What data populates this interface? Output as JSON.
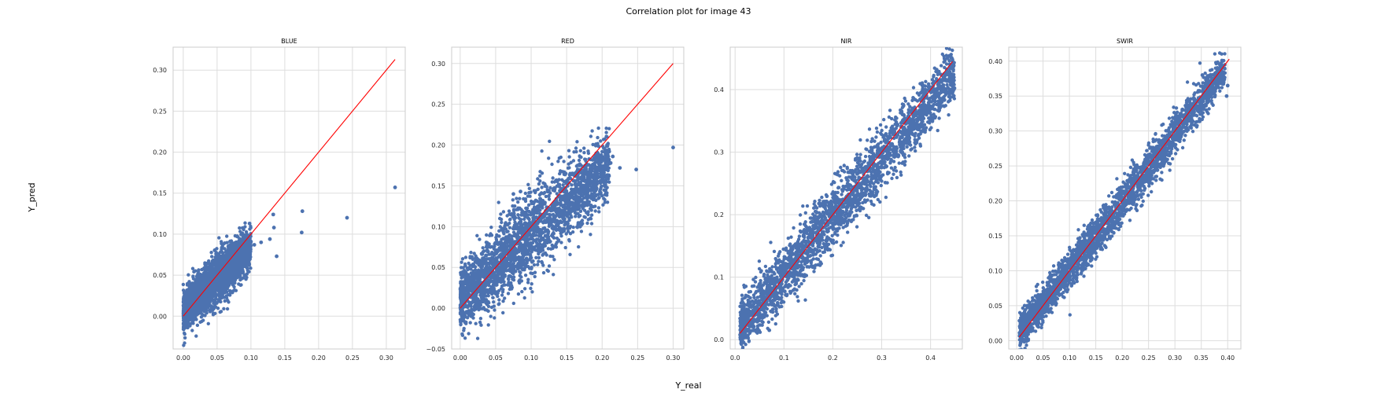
{
  "figure": {
    "title": "Correlation plot for image 43",
    "xlabel": "Y_real",
    "ylabel": "Y_pred"
  },
  "colors": {
    "points": "#4c72b0",
    "identity_line": "#ff0000",
    "grid": "#dddddd",
    "frame": "#cccccc",
    "background": "#ffffff"
  },
  "chart_data": [
    {
      "type": "scatter",
      "title": "BLUE",
      "xlim": [
        -0.015,
        0.328
      ],
      "ylim": [
        -0.04,
        0.328
      ],
      "xticks": [
        0.0,
        0.05,
        0.1,
        0.15,
        0.2,
        0.25,
        0.3
      ],
      "xtick_labels": [
        "0.00",
        "0.05",
        "0.10",
        "0.15",
        "0.20",
        "0.25",
        "0.30"
      ],
      "yticks": [
        0.0,
        0.05,
        0.1,
        0.15,
        0.2,
        0.25,
        0.3
      ],
      "ytick_labels": [
        "0.00",
        "0.05",
        "0.10",
        "0.15",
        "0.20",
        "0.25",
        "0.30"
      ],
      "grid": true,
      "identity_line": [
        [
          0.0,
          0.0
        ],
        [
          0.313,
          0.313
        ]
      ],
      "cloud": {
        "x_range": [
          0.0,
          0.1
        ],
        "slope": 0.78,
        "intercept": 0.006,
        "spread": 0.012
      },
      "outliers": [
        [
          0.313,
          0.157
        ],
        [
          0.242,
          0.12
        ],
        [
          0.176,
          0.128
        ],
        [
          0.175,
          0.102
        ],
        [
          0.138,
          0.073
        ],
        [
          0.133,
          0.124
        ],
        [
          0.134,
          0.108
        ],
        [
          0.128,
          0.094
        ],
        [
          0.115,
          0.09
        ],
        [
          0.098,
          0.113
        ],
        [
          0.095,
          0.093
        ],
        [
          0.105,
          0.087
        ],
        [
          0.1,
          0.091
        ]
      ]
    },
    {
      "type": "scatter",
      "title": "RED",
      "xlim": [
        -0.012,
        0.315
      ],
      "ylim": [
        -0.05,
        0.32
      ],
      "xticks": [
        0.0,
        0.05,
        0.1,
        0.15,
        0.2,
        0.25,
        0.3
      ],
      "xtick_labels": [
        "0.00",
        "0.05",
        "0.10",
        "0.15",
        "0.20",
        "0.25",
        "0.30"
      ],
      "yticks": [
        -0.05,
        0.0,
        0.05,
        0.1,
        0.15,
        0.2,
        0.25,
        0.3
      ],
      "ytick_labels": [
        "−0.05",
        "0.00",
        "0.05",
        "0.10",
        "0.15",
        "0.20",
        "0.25",
        "0.30"
      ],
      "grid": true,
      "identity_line": [
        [
          0.0,
          0.0
        ],
        [
          0.3,
          0.3
        ]
      ],
      "cloud": {
        "x_range": [
          0.0,
          0.21
        ],
        "slope": 0.8,
        "intercept": 0.01,
        "spread": 0.02
      },
      "outliers": [
        [
          0.3,
          0.197
        ],
        [
          0.248,
          0.17
        ],
        [
          0.225,
          0.172
        ],
        [
          0.215,
          0.186
        ],
        [
          0.212,
          0.178
        ],
        [
          0.21,
          0.192
        ],
        [
          0.205,
          0.18
        ],
        [
          0.075,
          0.14
        ],
        [
          0.085,
          0.143
        ]
      ]
    },
    {
      "type": "scatter",
      "title": "NIR",
      "xlim": [
        -0.01,
        0.465
      ],
      "ylim": [
        -0.015,
        0.468
      ],
      "xticks": [
        0.0,
        0.1,
        0.2,
        0.3,
        0.4
      ],
      "xtick_labels": [
        "0.0",
        "0.1",
        "0.2",
        "0.3",
        "0.4"
      ],
      "yticks": [
        0.0,
        0.1,
        0.2,
        0.3,
        0.4
      ],
      "ytick_labels": [
        "0.0",
        "0.1",
        "0.2",
        "0.3",
        "0.4"
      ],
      "grid": true,
      "identity_line": [
        [
          0.01,
          0.01
        ],
        [
          0.445,
          0.445
        ]
      ],
      "cloud": {
        "x_range": [
          0.01,
          0.45
        ],
        "slope": 0.93,
        "intercept": 0.01,
        "spread": 0.02
      },
      "outliers": [
        [
          0.445,
          0.408
        ],
        [
          0.44,
          0.412
        ],
        [
          0.38,
          0.395
        ],
        [
          0.07,
          0.015
        ]
      ]
    },
    {
      "type": "scatter",
      "title": "SWIR",
      "xlim": [
        -0.015,
        0.425
      ],
      "ylim": [
        -0.012,
        0.42
      ],
      "xticks": [
        0.0,
        0.05,
        0.1,
        0.15,
        0.2,
        0.25,
        0.3,
        0.35,
        0.4
      ],
      "xtick_labels": [
        "0.00",
        "0.05",
        "0.10",
        "0.15",
        "0.20",
        "0.25",
        "0.30",
        "0.35",
        "0.40"
      ],
      "yticks": [
        0.0,
        0.05,
        0.1,
        0.15,
        0.2,
        0.25,
        0.3,
        0.35,
        0.4
      ],
      "ytick_labels": [
        "0.00",
        "0.05",
        "0.10",
        "0.15",
        "0.20",
        "0.25",
        "0.30",
        "0.35",
        "0.40"
      ],
      "grid": true,
      "identity_line": [
        [
          0.005,
          0.005
        ],
        [
          0.403,
          0.403
        ]
      ],
      "cloud": {
        "x_range": [
          0.005,
          0.395
        ],
        "slope": 0.97,
        "intercept": 0.005,
        "spread": 0.012
      },
      "outliers": [
        [
          0.4,
          0.365
        ],
        [
          0.398,
          0.35
        ],
        [
          0.375,
          0.36
        ],
        [
          0.352,
          0.38
        ],
        [
          0.15,
          0.135
        ],
        [
          0.09,
          0.09
        ]
      ]
    }
  ]
}
